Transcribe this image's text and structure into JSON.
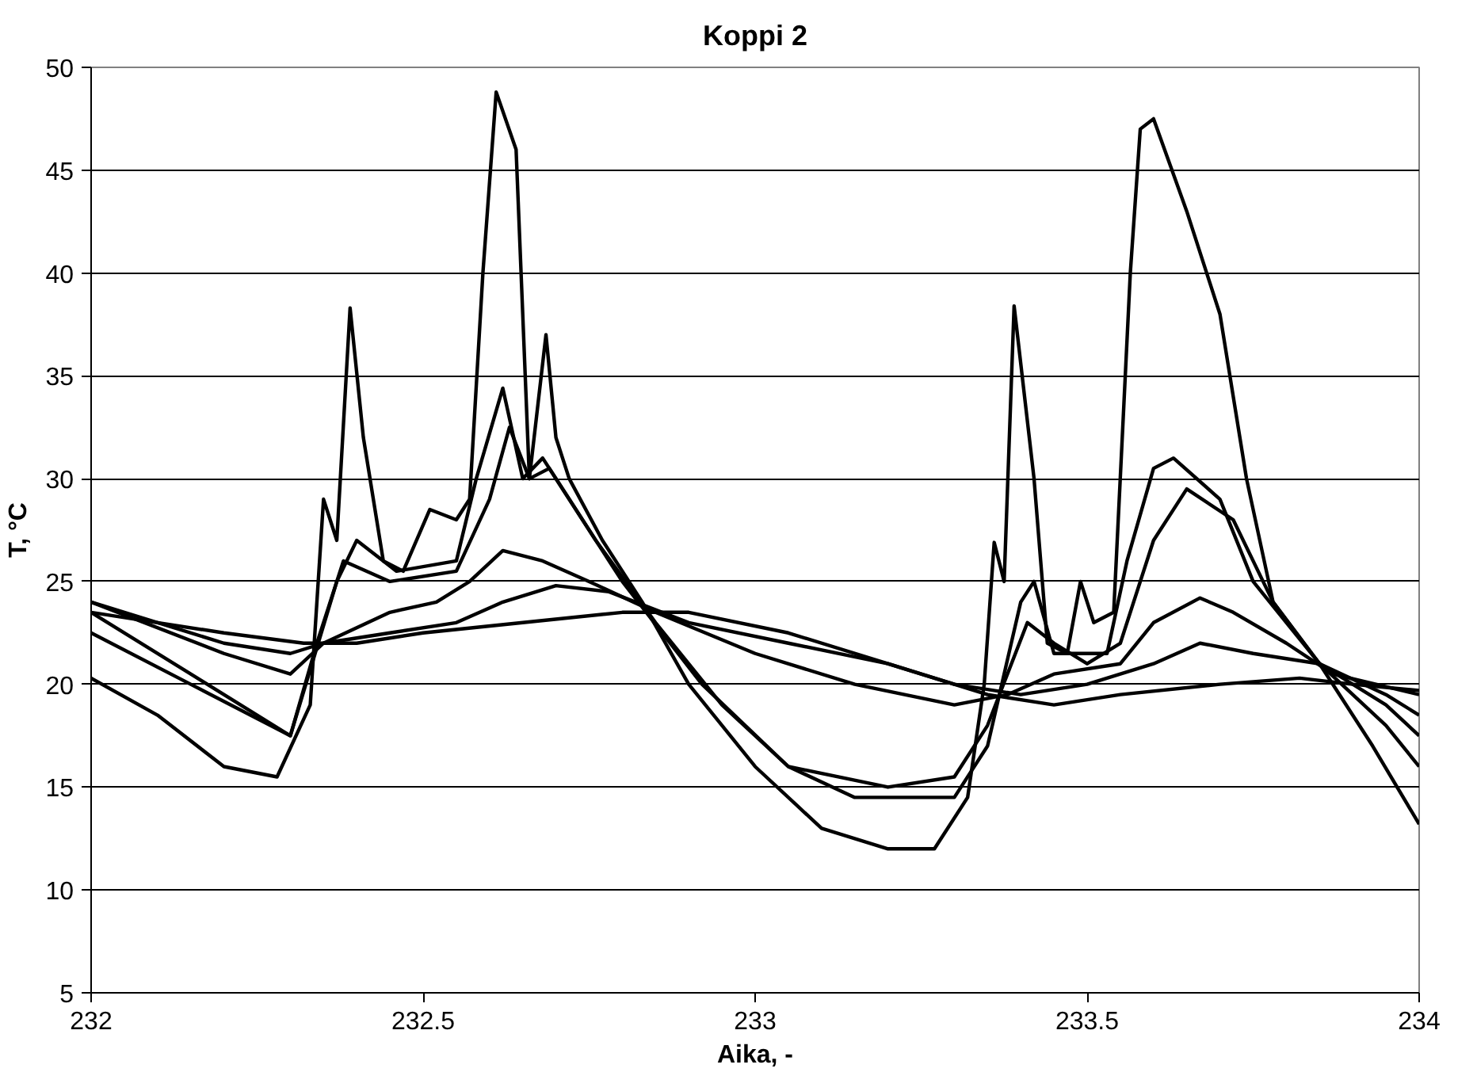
{
  "chart_data": {
    "type": "line",
    "title": "Koppi 2",
    "xlabel": "Aika, -",
    "ylabel": "T, °C",
    "xlim": [
      232,
      234
    ],
    "xticks": [
      232,
      232.5,
      233,
      233.5,
      234
    ],
    "ylim": [
      5,
      50
    ],
    "yticks": [
      5,
      10,
      15,
      20,
      25,
      30,
      35,
      40,
      45,
      50
    ],
    "grid": "y",
    "marker": "none",
    "line_style": "solid",
    "series": [
      {
        "color": "#000000",
        "x": [
          232,
          232.1,
          232.2,
          232.28,
          232.33,
          232.35,
          232.37,
          232.39,
          232.41,
          232.44,
          232.47,
          232.51,
          232.55,
          232.57,
          232.59,
          232.61,
          232.64,
          232.66,
          232.685,
          232.7,
          232.72,
          232.77,
          232.83,
          232.9,
          233.0,
          233.1,
          233.2,
          233.27,
          233.32,
          233.345,
          233.36,
          233.375,
          233.39,
          233.42,
          233.44,
          233.47,
          233.49,
          233.51,
          233.54,
          233.565,
          233.58,
          233.6,
          233.65,
          233.7,
          233.74,
          233.78,
          233.85,
          233.93,
          234
        ],
        "values": [
          20.3,
          18.5,
          16,
          15.5,
          19,
          29,
          27,
          38.3,
          32,
          26,
          25.5,
          28.5,
          28,
          29,
          40,
          48.8,
          46,
          30,
          37,
          32,
          30,
          27,
          24,
          20,
          16,
          13,
          12,
          12,
          14.5,
          20,
          26.9,
          25,
          38.4,
          30,
          22,
          21.5,
          25,
          23,
          23.5,
          40,
          47,
          47.5,
          43,
          38,
          30,
          24,
          21,
          17,
          13.2
        ]
      },
      {
        "color": "#000000",
        "x": [
          232,
          232.15,
          232.3,
          232.37,
          232.4,
          232.46,
          232.55,
          232.58,
          232.62,
          232.65,
          232.68,
          232.72,
          232.8,
          232.92,
          233.05,
          233.15,
          233.3,
          233.35,
          233.4,
          233.42,
          233.45,
          233.53,
          233.56,
          233.6,
          233.63,
          233.7,
          233.75,
          233.85,
          233.95,
          234
        ],
        "values": [
          22.5,
          20,
          17.5,
          25,
          27,
          25.5,
          26,
          30,
          34.4,
          30,
          31,
          29,
          25,
          20,
          16,
          14.5,
          14.5,
          17,
          24,
          25,
          21.5,
          21.5,
          26,
          30.5,
          31,
          29,
          25,
          21,
          18,
          16
        ]
      },
      {
        "color": "#000000",
        "x": [
          232,
          232.15,
          232.3,
          232.34,
          232.38,
          232.45,
          232.55,
          232.6,
          232.63,
          232.66,
          232.69,
          232.76,
          232.85,
          232.95,
          233.05,
          233.2,
          233.3,
          233.35,
          233.41,
          233.45,
          233.5,
          233.55,
          233.6,
          233.65,
          233.72,
          233.78,
          233.85,
          233.95,
          234
        ],
        "values": [
          23.5,
          20.5,
          17.5,
          22,
          26,
          25,
          25.5,
          29,
          32.5,
          30,
          30.5,
          27,
          23,
          19,
          16,
          15,
          15.5,
          18,
          23,
          22,
          21,
          22,
          27,
          29.5,
          28,
          24,
          21,
          19,
          17.5
        ]
      },
      {
        "color": "#000000",
        "x": [
          232,
          232.2,
          232.3,
          232.35,
          232.45,
          232.52,
          232.57,
          232.62,
          232.68,
          232.75,
          232.85,
          233.0,
          233.15,
          233.3,
          233.38,
          233.45,
          233.55,
          233.6,
          233.67,
          233.72,
          233.8,
          233.87,
          234
        ],
        "values": [
          24,
          21.5,
          20.5,
          22,
          23.5,
          24,
          25,
          26.5,
          26,
          25,
          23.5,
          21.5,
          20,
          19,
          19.5,
          20.5,
          21,
          23,
          24.2,
          23.5,
          22,
          20.5,
          19.5
        ]
      },
      {
        "color": "#000000",
        "x": [
          232,
          232.2,
          232.3,
          232.35,
          232.45,
          232.55,
          232.62,
          232.7,
          232.78,
          232.9,
          233.05,
          233.2,
          233.3,
          233.4,
          233.5,
          233.6,
          233.67,
          233.75,
          233.85,
          233.95,
          234
        ],
        "values": [
          24,
          22,
          21.5,
          22,
          22.5,
          23,
          24,
          24.8,
          24.5,
          23,
          22,
          21,
          20,
          19.5,
          20,
          21,
          22,
          21.5,
          21,
          19.5,
          18.5
        ]
      },
      {
        "color": "#000000",
        "x": [
          232,
          232.2,
          232.32,
          232.4,
          232.5,
          232.65,
          232.8,
          232.9,
          233.05,
          233.2,
          233.35,
          233.45,
          233.55,
          233.7,
          233.82,
          233.9,
          234
        ],
        "values": [
          23.5,
          22.5,
          22,
          22,
          22.5,
          23,
          23.5,
          23.5,
          22.5,
          21,
          19.5,
          19,
          19.5,
          20,
          20.3,
          20,
          19.7
        ]
      }
    ]
  }
}
